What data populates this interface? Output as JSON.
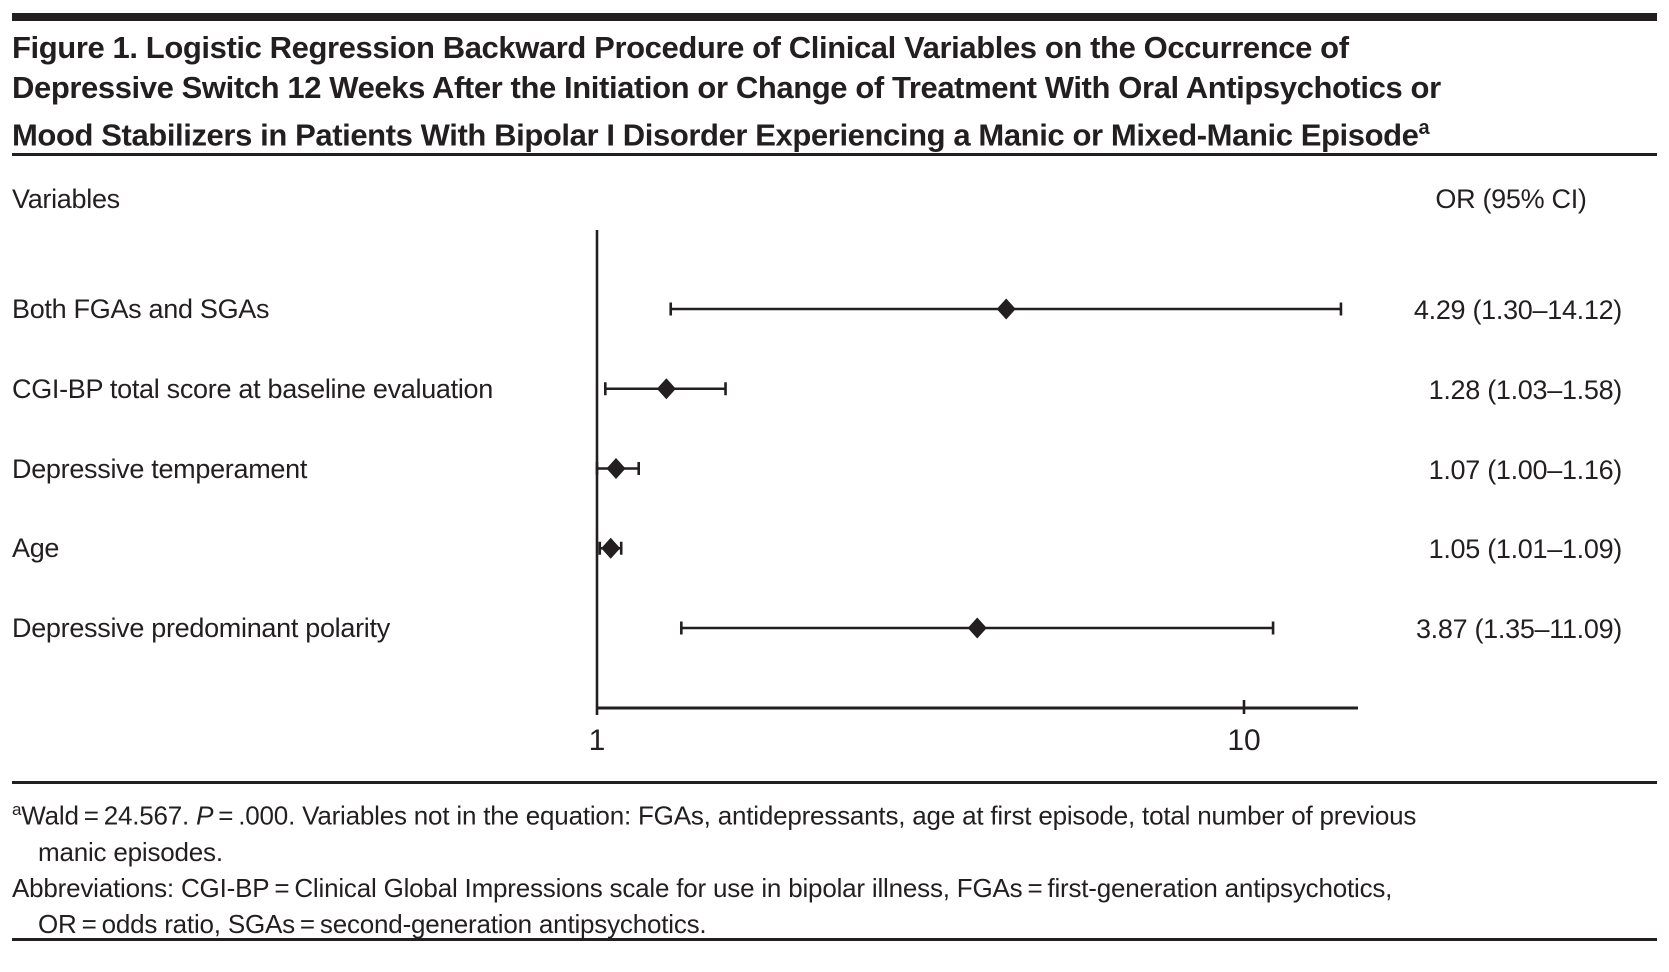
{
  "colors": {
    "ink": "#231F20",
    "background": "#FFFFFF"
  },
  "title": {
    "lines": [
      "Figure 1. Logistic Regression Backward Procedure of Clinical Variables on the Occurrence of",
      "Depressive Switch 12 Weeks After the Initiation or Change of Treatment With Oral Antipsychotics or",
      "Mood Stabilizers in Patients With Bipolar I Disorder Experiencing a Manic or Mixed-Manic Episode"
    ],
    "superscript": "a"
  },
  "chart_data": {
    "type": "forest",
    "x_scale": "log10",
    "x_range": [
      1,
      15
    ],
    "x_ticks": [
      {
        "value": 1,
        "label": "1"
      },
      {
        "value": 10,
        "label": "10"
      }
    ],
    "columns": {
      "left_header": "Variables",
      "right_header": "OR (95% CI)"
    },
    "marker": "diamond",
    "rows": [
      {
        "label": "Both FGAs and SGAs",
        "or": 4.29,
        "ci_low": 1.3,
        "ci_high": 14.12,
        "or_text": "4.29 (1.30–14.12)"
      },
      {
        "label": "CGI-BP total score at baseline evaluation",
        "or": 1.28,
        "ci_low": 1.03,
        "ci_high": 1.58,
        "or_text": "1.28 (1.03–1.58)"
      },
      {
        "label": "Depressive temperament",
        "or": 1.07,
        "ci_low": 1.0,
        "ci_high": 1.16,
        "or_text": "1.07 (1.00–1.16)"
      },
      {
        "label": "Age",
        "or": 1.05,
        "ci_low": 1.01,
        "ci_high": 1.09,
        "or_text": "1.05 (1.01–1.09)"
      },
      {
        "label": "Depressive predominant polarity",
        "or": 3.87,
        "ci_low": 1.35,
        "ci_high": 11.09,
        "or_text": "3.87 (1.35–11.09)"
      }
    ]
  },
  "footnotes": {
    "marker": "a",
    "line1_pre": "Wald = 24.567. ",
    "line1_italic": "P",
    "line1_post": " = .000. Variables not in the equation: FGAs, antidepressants, age at first episode, total number of previous",
    "line2": "manic episodes.",
    "line3": "Abbreviations: CGI-BP = Clinical Global Impressions scale for use in bipolar illness, FGAs = first-generation antipsychotics,",
    "line4": "OR = odds ratio, SGAs = second-generation antipsychotics."
  }
}
